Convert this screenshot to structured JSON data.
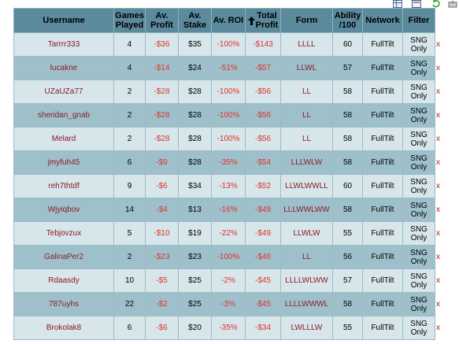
{
  "toolbar": {
    "icons": [
      "table-view-icon",
      "export-icon",
      "refresh-icon",
      "settings-icon"
    ]
  },
  "columns": {
    "username": "Username",
    "games": [
      "Games",
      "Played"
    ],
    "avprofit": [
      "Av.",
      "Profit"
    ],
    "avstake": [
      "Av.",
      "Stake"
    ],
    "avroi": "Av. ROI",
    "totalprofit": [
      "Total",
      "Profit"
    ],
    "form": "Form",
    "ability": [
      "Ability",
      "/100"
    ],
    "network": "Network",
    "filter": "Filter"
  },
  "remove_label": "x",
  "rows": [
    {
      "user": "Tarrrr333",
      "games": "4",
      "avprofit": "-$36",
      "avstake": "$35",
      "roi": "-100%",
      "total": "-$143",
      "form": "LLLL",
      "ability": "60",
      "network": "FullTilt",
      "filter1": "SNG",
      "filter2": "Only"
    },
    {
      "user": "lucakne",
      "games": "4",
      "avprofit": "-$14",
      "avstake": "$24",
      "roi": "-51%",
      "total": "-$57",
      "form": "LLWL",
      "ability": "57",
      "network": "FullTilt",
      "filter1": "SNG",
      "filter2": "Only"
    },
    {
      "user": "UZaUZa77",
      "games": "2",
      "avprofit": "-$28",
      "avstake": "$28",
      "roi": "-100%",
      "total": "-$56",
      "form": "LL",
      "ability": "58",
      "network": "FullTilt",
      "filter1": "SNG",
      "filter2": "Only"
    },
    {
      "user": "sheridan_gnab",
      "games": "2",
      "avprofit": "-$28",
      "avstake": "$28",
      "roi": "-100%",
      "total": "-$56",
      "form": "LL",
      "ability": "58",
      "network": "FullTilt",
      "filter1": "SNG",
      "filter2": "Only"
    },
    {
      "user": "Melard",
      "games": "2",
      "avprofit": "-$28",
      "avstake": "$28",
      "roi": "-100%",
      "total": "-$56",
      "form": "LL",
      "ability": "58",
      "network": "FullTilt",
      "filter1": "SNG",
      "filter2": "Only"
    },
    {
      "user": "jmyfuh45",
      "games": "6",
      "avprofit": "-$9",
      "avstake": "$28",
      "roi": "-35%",
      "total": "-$54",
      "form": "LLLWLW",
      "ability": "58",
      "network": "FullTilt",
      "filter1": "SNG",
      "filter2": "Only"
    },
    {
      "user": "reh7thtdf",
      "games": "9",
      "avprofit": "-$6",
      "avstake": "$34",
      "roi": "-13%",
      "total": "-$52",
      "form": "LLWLWWLL",
      "ability": "60",
      "network": "FullTilt",
      "filter1": "SNG",
      "filter2": "Only"
    },
    {
      "user": "Wjyiqbov",
      "games": "14",
      "avprofit": "-$4",
      "avstake": "$13",
      "roi": "-16%",
      "total": "-$49",
      "form": "LLLWWLWW",
      "ability": "58",
      "network": "FullTilt",
      "filter1": "SNG",
      "filter2": "Only"
    },
    {
      "user": "Tebjovzux",
      "games": "5",
      "avprofit": "-$10",
      "avstake": "$19",
      "roi": "-22%",
      "total": "-$49",
      "form": "LLWLW",
      "ability": "55",
      "network": "FullTilt",
      "filter1": "SNG",
      "filter2": "Only"
    },
    {
      "user": "GalinaPer2",
      "games": "2",
      "avprofit": "-$23",
      "avstake": "$23",
      "roi": "-100%",
      "total": "-$46",
      "form": "LL",
      "ability": "56",
      "network": "FullTilt",
      "filter1": "SNG",
      "filter2": "Only"
    },
    {
      "user": "Rdaasdy",
      "games": "10",
      "avprofit": "-$5",
      "avstake": "$25",
      "roi": "-2%",
      "total": "-$45",
      "form": "LLLLWLWW",
      "ability": "57",
      "network": "FullTilt",
      "filter1": "SNG",
      "filter2": "Only"
    },
    {
      "user": "787uyhs",
      "games": "22",
      "avprofit": "-$2",
      "avstake": "$25",
      "roi": "-3%",
      "total": "-$45",
      "form": "LLLLWWWL",
      "ability": "58",
      "network": "FullTilt",
      "filter1": "SNG",
      "filter2": "Only"
    },
    {
      "user": "Brokolak8",
      "games": "6",
      "avprofit": "-$6",
      "avstake": "$20",
      "roi": "-35%",
      "total": "-$34",
      "form": "LWLLLW",
      "ability": "55",
      "network": "FullTilt",
      "filter1": "SNG",
      "filter2": "Only"
    }
  ],
  "colors": {
    "header_bg": "#5a8a9c",
    "row_light": "#d7e6ea",
    "row_dark": "#9ec0cb",
    "negative": "#e0322c",
    "username": "#8b1a2a"
  }
}
